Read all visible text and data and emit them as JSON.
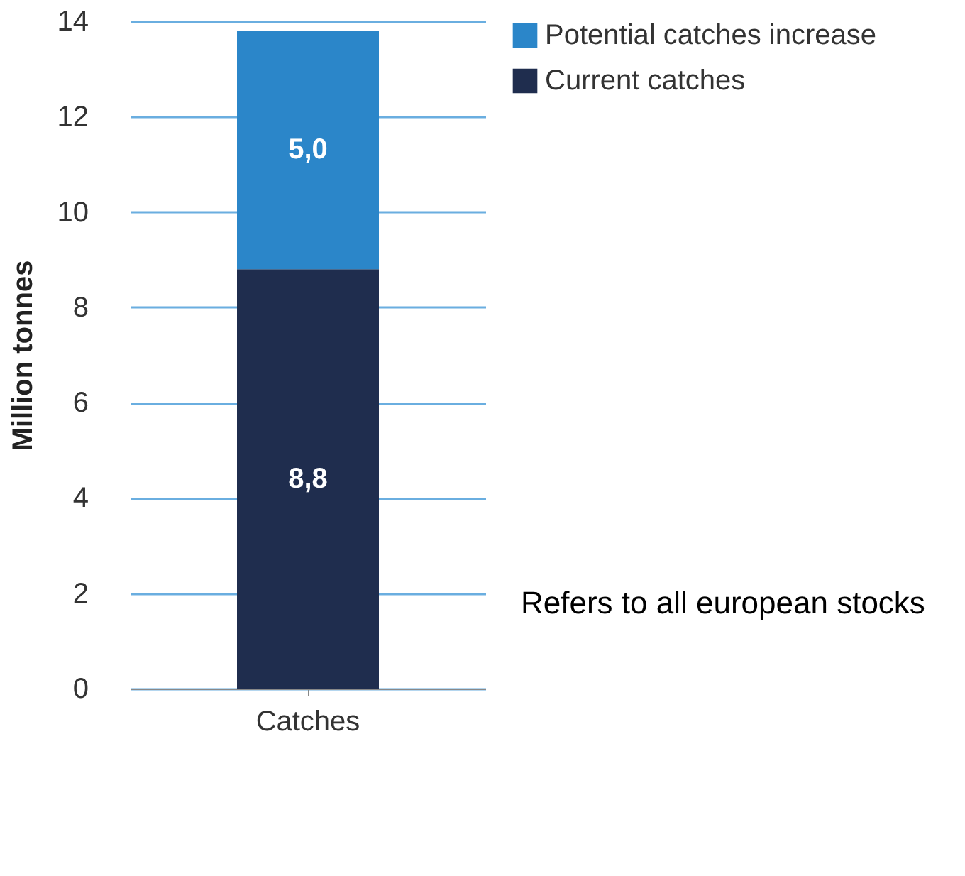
{
  "chart_data": {
    "type": "bar",
    "stacked": true,
    "ylabel": "Million tonnes",
    "categories": [
      "Catches"
    ],
    "series": [
      {
        "name": "Current catches",
        "color": "#1f2d4e",
        "values": [
          8.8
        ],
        "value_labels": [
          "8,8"
        ]
      },
      {
        "name": "Potential catches increase",
        "color": "#2b86c9",
        "values": [
          5.0
        ],
        "value_labels": [
          "5,0"
        ]
      }
    ],
    "ylim": [
      0,
      14
    ],
    "yticks": [
      0,
      2,
      4,
      6,
      8,
      10,
      12,
      14
    ],
    "grid": "y",
    "legend": "top right",
    "annotations": [
      "Refers to all european stocks"
    ]
  }
}
